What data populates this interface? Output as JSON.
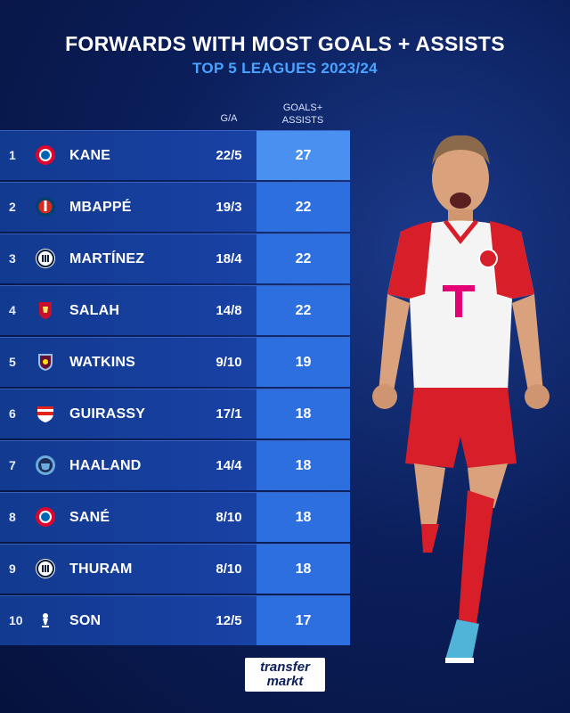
{
  "header": {
    "title": "FORWARDS WITH MOST GOALS + ASSISTS",
    "subtitle": "TOP 5 LEAGUES 2023/24"
  },
  "columns": {
    "ga_label": "G/A",
    "total_label_line1": "GOALS+",
    "total_label_line2": "ASSISTS"
  },
  "rows": [
    {
      "rank": "1",
      "name": "KANE",
      "ga": "22/5",
      "total": "27",
      "crest": "bayern-crest-icon"
    },
    {
      "rank": "2",
      "name": "MBAPPÉ",
      "ga": "19/3",
      "total": "22",
      "crest": "psg-crest-icon"
    },
    {
      "rank": "3",
      "name": "MARTÍNEZ",
      "ga": "18/4",
      "total": "22",
      "crest": "inter-crest-icon"
    },
    {
      "rank": "4",
      "name": "SALAH",
      "ga": "14/8",
      "total": "22",
      "crest": "liverpool-crest-icon"
    },
    {
      "rank": "5",
      "name": "WATKINS",
      "ga": "9/10",
      "total": "19",
      "crest": "aston-villa-crest-icon"
    },
    {
      "rank": "6",
      "name": "GUIRASSY",
      "ga": "17/1",
      "total": "18",
      "crest": "stuttgart-crest-icon"
    },
    {
      "rank": "7",
      "name": "HAALAND",
      "ga": "14/4",
      "total": "18",
      "crest": "man-city-crest-icon"
    },
    {
      "rank": "8",
      "name": "SANÉ",
      "ga": "8/10",
      "total": "18",
      "crest": "bayern-crest-icon"
    },
    {
      "rank": "9",
      "name": "THURAM",
      "ga": "8/10",
      "total": "18",
      "crest": "inter-crest-icon"
    },
    {
      "rank": "10",
      "name": "SON",
      "ga": "12/5",
      "total": "17",
      "crest": "tottenham-crest-icon"
    }
  ],
  "brand": {
    "line1": "transfer",
    "line2": "markt"
  },
  "colors": {
    "accent": "#4aa3ff",
    "total_cell": "#2e6fe0",
    "total_cell_top": "#4a90f0"
  }
}
